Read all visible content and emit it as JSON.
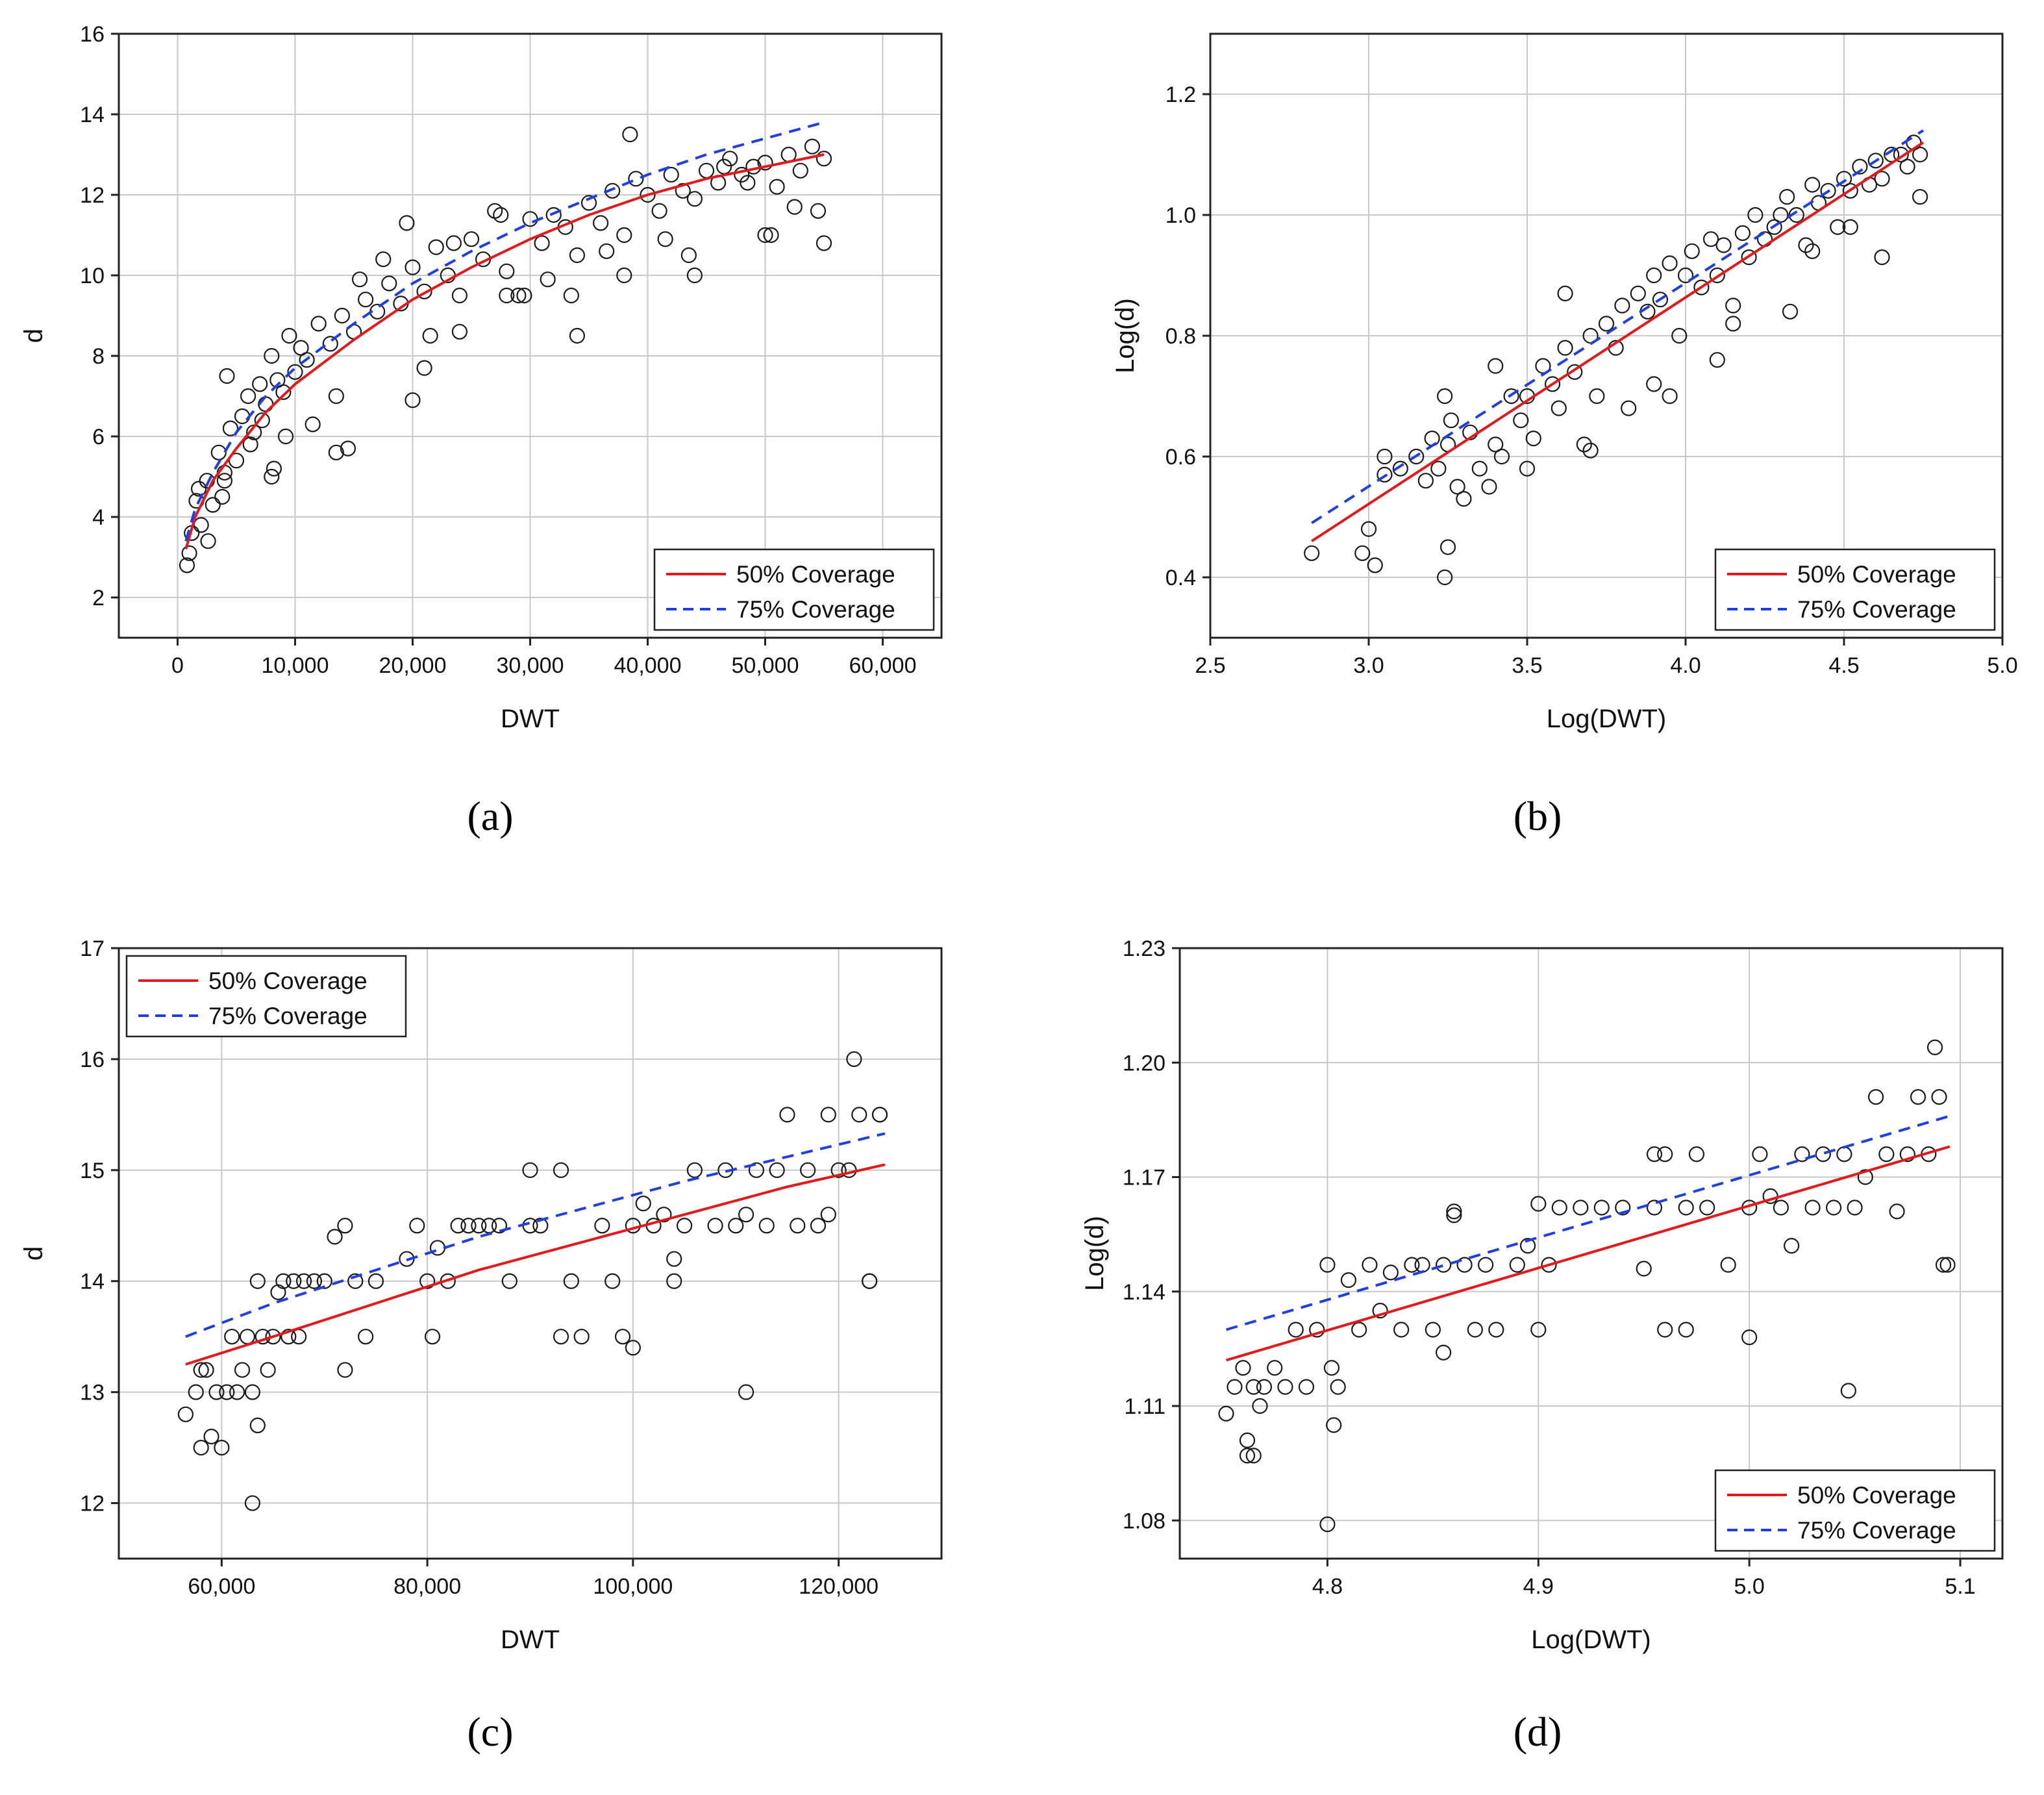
{
  "figure": {
    "panel_labels": [
      "(a)",
      "(b)",
      "(c)",
      "(d)"
    ],
    "colors": {
      "fit_50": "#e31a1c",
      "fit_75": "#1f3fe0",
      "marker_edge": "#1a1a1a",
      "grid": "#c8c8c8",
      "frame": "#222222"
    }
  },
  "chart_data": [
    {
      "id": "a",
      "type": "scatter",
      "xlabel": "DWT",
      "ylabel": "d",
      "xlim": [
        -5000,
        65000
      ],
      "ylim": [
        1,
        16
      ],
      "xticks": [
        0,
        10000,
        20000,
        30000,
        40000,
        50000,
        60000
      ],
      "xtick_labels": [
        "0",
        "10,000",
        "20,000",
        "30,000",
        "40,000",
        "50,000",
        "60,000"
      ],
      "yticks": [
        2,
        4,
        6,
        8,
        10,
        12,
        14,
        16
      ],
      "ytick_labels": [
        "2",
        "4",
        "6",
        "8",
        "10",
        "12",
        "14",
        "16"
      ],
      "legend_position": "bottom-right",
      "series": [
        {
          "name": "50% Coverage",
          "style": "solid",
          "color": "#e31a1c",
          "x": [
            700,
            1500,
            3000,
            5000,
            7500,
            10000,
            15000,
            20000,
            25000,
            30000,
            35000,
            40000,
            45000,
            50000,
            55000
          ],
          "y": [
            3.2,
            4.0,
            4.9,
            5.7,
            6.6,
            7.3,
            8.4,
            9.4,
            10.2,
            10.9,
            11.5,
            12.0,
            12.4,
            12.7,
            13.0
          ]
        },
        {
          "name": "75% Coverage",
          "style": "dashed",
          "color": "#1f3fe0",
          "x": [
            700,
            1500,
            3000,
            5000,
            7500,
            10000,
            15000,
            20000,
            25000,
            30000,
            35000,
            40000,
            45000,
            50000,
            55000
          ],
          "y": [
            3.4,
            4.2,
            5.1,
            6.1,
            7.0,
            7.7,
            8.8,
            9.8,
            10.6,
            11.3,
            11.9,
            12.5,
            13.0,
            13.4,
            13.8
          ]
        }
      ],
      "points": {
        "x": [
          800,
          1200,
          1600,
          2000,
          2500,
          3000,
          3500,
          4000,
          4500,
          5000,
          5500,
          6000,
          6500,
          7000,
          7500,
          8000,
          8500,
          9000,
          9500,
          10000,
          10500,
          11000,
          12000,
          13000,
          14000,
          15000,
          16000,
          17000,
          18000,
          19000,
          20000,
          21000,
          22000,
          23000,
          24000,
          25000,
          26000,
          27000,
          28000,
          29000,
          30000,
          31000,
          32000,
          33000,
          34000,
          35000,
          36000,
          37000,
          38000,
          39000,
          40000,
          41000,
          42000,
          43000,
          44000,
          45000,
          46000,
          47000,
          48000,
          49000,
          50000,
          51000,
          52000,
          53000,
          54000,
          55000,
          1000,
          1800,
          2600,
          3800,
          4200,
          6200,
          7200,
          8200,
          9200,
          11500,
          13500,
          14500,
          15500,
          17500,
          19500,
          21500,
          23500,
          27500,
          29500,
          31500,
          33500,
          36500,
          38500,
          41500,
          43500,
          46500,
          48500,
          50500,
          52500,
          54500,
          4000,
          8000,
          13500,
          20000,
          21000,
          24000,
          28000,
          34000,
          38000,
          44000,
          50000,
          55000
        ],
        "y": [
          2.8,
          3.6,
          4.4,
          3.8,
          4.9,
          4.3,
          5.6,
          5.1,
          6.2,
          5.4,
          6.5,
          7.0,
          6.1,
          7.3,
          6.8,
          8.0,
          7.4,
          7.1,
          8.5,
          7.6,
          8.2,
          7.9,
          8.8,
          8.3,
          9.0,
          8.6,
          9.4,
          9.1,
          9.8,
          9.3,
          10.2,
          9.6,
          10.7,
          10.0,
          9.5,
          10.9,
          10.4,
          11.6,
          10.1,
          9.5,
          11.4,
          10.8,
          11.5,
          11.2,
          10.5,
          11.8,
          11.3,
          12.1,
          11.0,
          12.4,
          12.0,
          11.6,
          12.5,
          12.1,
          11.9,
          12.6,
          12.3,
          12.9,
          12.5,
          12.7,
          12.8,
          12.2,
          13.0,
          12.6,
          13.2,
          12.9,
          3.1,
          4.7,
          3.4,
          4.5,
          7.5,
          5.8,
          6.4,
          5.2,
          6.0,
          6.3,
          7.0,
          5.7,
          9.9,
          10.4,
          11.3,
          8.5,
          10.8,
          11.5,
          9.5,
          9.9,
          9.5,
          10.6,
          13.5,
          10.9,
          10.5,
          12.7,
          12.3,
          11.0,
          11.7,
          11.6,
          4.9,
          5.0,
          5.6,
          6.9,
          7.7,
          8.6,
          9.5,
          8.5,
          10.0,
          10.0,
          11.0,
          10.8
        ]
      }
    },
    {
      "id": "b",
      "type": "scatter",
      "xlabel": "Log(DWT)",
      "ylabel": "Log(d)",
      "xlim": [
        2.5,
        5.0
      ],
      "ylim": [
        0.3,
        1.3
      ],
      "xticks": [
        2.5,
        3.0,
        3.5,
        4.0,
        4.5,
        5.0
      ],
      "xtick_labels": [
        "2.5",
        "3.0",
        "3.5",
        "4.0",
        "4.5",
        "5.0"
      ],
      "yticks": [
        0.4,
        0.6,
        0.8,
        1.0,
        1.2
      ],
      "ytick_labels": [
        "0.4",
        "0.6",
        "0.8",
        "1.0",
        "1.2"
      ],
      "legend_position": "bottom-right",
      "series": [
        {
          "name": "50% Coverage",
          "style": "solid",
          "color": "#e31a1c",
          "x": [
            2.82,
            4.75
          ],
          "y": [
            0.46,
            1.12
          ]
        },
        {
          "name": "75% Coverage",
          "style": "dashed",
          "color": "#1f3fe0",
          "x": [
            2.82,
            4.75
          ],
          "y": [
            0.49,
            1.14
          ]
        }
      ],
      "points": {
        "x": [
          2.82,
          2.98,
          3.0,
          3.02,
          3.05,
          3.05,
          3.1,
          3.15,
          3.18,
          3.2,
          3.22,
          3.24,
          3.25,
          3.26,
          3.28,
          3.3,
          3.32,
          3.35,
          3.38,
          3.4,
          3.42,
          3.45,
          3.48,
          3.5,
          3.52,
          3.55,
          3.58,
          3.6,
          3.62,
          3.65,
          3.68,
          3.7,
          3.72,
          3.75,
          3.78,
          3.8,
          3.82,
          3.85,
          3.88,
          3.9,
          3.92,
          3.95,
          3.98,
          4.0,
          4.02,
          4.05,
          4.08,
          4.1,
          4.12,
          4.15,
          4.18,
          4.2,
          4.22,
          4.25,
          4.28,
          4.3,
          4.32,
          4.35,
          4.38,
          4.4,
          4.42,
          4.45,
          4.48,
          4.5,
          4.52,
          4.55,
          4.58,
          4.6,
          4.62,
          4.65,
          4.68,
          4.7,
          4.72,
          4.74,
          3.24,
          3.25,
          3.4,
          3.62,
          3.5,
          3.7,
          3.9,
          3.95,
          4.1,
          4.15,
          4.33,
          4.4,
          4.52,
          4.62,
          4.74
        ],
        "y": [
          0.44,
          0.44,
          0.48,
          0.42,
          0.6,
          0.57,
          0.58,
          0.6,
          0.56,
          0.63,
          0.58,
          0.7,
          0.62,
          0.66,
          0.55,
          0.53,
          0.64,
          0.58,
          0.55,
          0.62,
          0.6,
          0.7,
          0.66,
          0.7,
          0.63,
          0.75,
          0.72,
          0.68,
          0.78,
          0.74,
          0.62,
          0.8,
          0.7,
          0.82,
          0.78,
          0.85,
          0.68,
          0.87,
          0.84,
          0.9,
          0.86,
          0.92,
          0.8,
          0.9,
          0.94,
          0.88,
          0.96,
          0.9,
          0.95,
          0.85,
          0.97,
          0.93,
          1.0,
          0.96,
          0.98,
          1.0,
          1.03,
          1.0,
          0.95,
          1.05,
          1.02,
          1.04,
          0.98,
          1.06,
          1.04,
          1.08,
          1.05,
          1.09,
          1.06,
          1.1,
          1.1,
          1.08,
          1.12,
          1.1,
          0.4,
          0.45,
          0.75,
          0.87,
          0.58,
          0.61,
          0.72,
          0.7,
          0.76,
          0.82,
          0.84,
          0.94,
          0.98,
          0.93,
          1.03
        ]
      }
    },
    {
      "id": "c",
      "type": "scatter",
      "xlabel": "DWT",
      "ylabel": "d",
      "xlim": [
        50000,
        130000
      ],
      "ylim": [
        11.5,
        17
      ],
      "xticks": [
        60000,
        80000,
        100000,
        120000
      ],
      "xtick_labels": [
        "60,000",
        "80,000",
        "100,000",
        "120,000"
      ],
      "yticks": [
        12,
        13,
        14,
        15,
        16,
        17
      ],
      "ytick_labels": [
        "12",
        "13",
        "14",
        "15",
        "16",
        "17"
      ],
      "legend_position": "top-left",
      "series": [
        {
          "name": "50% Coverage",
          "style": "solid",
          "color": "#e31a1c",
          "x": [
            56500,
            65000,
            75000,
            85000,
            95000,
            105000,
            115000,
            124500
          ],
          "y": [
            13.25,
            13.5,
            13.8,
            14.1,
            14.35,
            14.6,
            14.85,
            15.05
          ]
        },
        {
          "name": "75% Coverage",
          "style": "dashed",
          "color": "#1f3fe0",
          "x": [
            56500,
            65000,
            75000,
            85000,
            95000,
            105000,
            115000,
            124500
          ],
          "y": [
            13.5,
            13.8,
            14.1,
            14.4,
            14.65,
            14.9,
            15.12,
            15.33
          ]
        }
      ],
      "points": {
        "x": [
          56500,
          57500,
          58000,
          58500,
          59000,
          59500,
          60000,
          60500,
          61000,
          61500,
          62000,
          62500,
          63000,
          63500,
          64000,
          64500,
          65000,
          65500,
          66000,
          66500,
          67000,
          67500,
          68000,
          69000,
          70000,
          71000,
          72000,
          73000,
          74000,
          75000,
          78000,
          79000,
          80000,
          80500,
          81000,
          82000,
          83000,
          84000,
          85000,
          86000,
          87000,
          88000,
          90000,
          91000,
          93000,
          94000,
          95000,
          97000,
          98000,
          99000,
          100000,
          101000,
          102000,
          103000,
          104000,
          105000,
          106000,
          108000,
          109000,
          110000,
          111000,
          112000,
          113000,
          114000,
          115000,
          116000,
          117000,
          118000,
          119000,
          120000,
          121000,
          122000,
          123000,
          124000,
          63000,
          63500,
          90000,
          93000,
          100000,
          111000,
          121500,
          119000,
          123000,
          124000,
          58000,
          72000,
          104000
        ],
        "y": [
          12.8,
          13.0,
          12.5,
          13.2,
          12.6,
          13.0,
          12.5,
          13.0,
          13.5,
          13.0,
          13.2,
          13.5,
          13.0,
          14.0,
          13.5,
          13.2,
          13.5,
          13.9,
          14.0,
          13.5,
          14.0,
          13.5,
          14.0,
          14.0,
          14.0,
          14.4,
          14.5,
          14.0,
          13.5,
          14.0,
          14.2,
          14.5,
          14.0,
          13.5,
          14.3,
          14.0,
          14.5,
          14.5,
          14.5,
          14.5,
          14.5,
          14.0,
          14.5,
          14.5,
          13.5,
          14.0,
          13.5,
          14.5,
          14.0,
          13.5,
          14.5,
          14.7,
          14.5,
          14.6,
          14.2,
          14.5,
          15.0,
          14.5,
          15.0,
          14.5,
          14.6,
          15.0,
          14.5,
          15.0,
          15.5,
          14.5,
          15.0,
          14.5,
          15.5,
          15.0,
          15.0,
          15.5,
          14.0,
          15.5,
          12.0,
          12.7,
          15.0,
          15.0,
          13.4,
          13.0,
          16.0,
          14.6,
          14.0,
          15.5,
          13.2,
          13.2,
          14.0
        ]
      }
    },
    {
      "id": "d",
      "type": "scatter",
      "xlabel": "Log(DWT)",
      "ylabel": "Log(d)",
      "xlim": [
        4.73,
        5.12
      ],
      "ylim": [
        1.07,
        1.23
      ],
      "xticks": [
        4.8,
        4.9,
        5.0,
        5.1
      ],
      "xtick_labels": [
        "4.8",
        "4.9",
        "5.0",
        "5.1"
      ],
      "yticks": [
        1.08,
        1.11,
        1.14,
        1.17,
        1.2,
        1.23
      ],
      "ytick_labels": [
        "1.08",
        "1.11",
        "1.14",
        "1.17",
        "1.20",
        "1.23"
      ],
      "legend_position": "bottom-right",
      "series": [
        {
          "name": "50% Coverage",
          "style": "solid",
          "color": "#e31a1c",
          "x": [
            4.752,
            5.095
          ],
          "y": [
            1.122,
            1.178
          ]
        },
        {
          "name": "75% Coverage",
          "style": "dashed",
          "color": "#1f3fe0",
          "x": [
            4.752,
            5.095
          ],
          "y": [
            1.13,
            1.186
          ]
        }
      ],
      "points": {
        "x": [
          4.752,
          4.756,
          4.76,
          4.762,
          4.765,
          4.768,
          4.77,
          4.775,
          4.78,
          4.785,
          4.79,
          4.795,
          4.8,
          4.802,
          4.805,
          4.81,
          4.815,
          4.82,
          4.825,
          4.83,
          4.835,
          4.84,
          4.845,
          4.85,
          4.855,
          4.86,
          4.865,
          4.87,
          4.875,
          4.88,
          4.89,
          4.895,
          4.9,
          4.905,
          4.91,
          4.92,
          4.93,
          4.94,
          4.95,
          4.955,
          4.96,
          4.97,
          4.975,
          4.98,
          4.99,
          5.0,
          5.005,
          5.01,
          5.015,
          5.02,
          5.025,
          5.03,
          5.035,
          5.04,
          5.045,
          5.05,
          5.055,
          5.06,
          5.065,
          5.07,
          5.075,
          5.08,
          5.085,
          5.09,
          5.094,
          4.8,
          4.803,
          4.762,
          4.765,
          4.855,
          4.955,
          4.96,
          4.97,
          5.0,
          5.047,
          5.088,
          5.092,
          4.86,
          4.9
        ],
        "y": [
          1.108,
          1.115,
          1.12,
          1.097,
          1.115,
          1.11,
          1.115,
          1.12,
          1.115,
          1.13,
          1.115,
          1.13,
          1.147,
          1.12,
          1.115,
          1.143,
          1.13,
          1.147,
          1.135,
          1.145,
          1.13,
          1.147,
          1.147,
          1.13,
          1.147,
          1.161,
          1.147,
          1.13,
          1.147,
          1.13,
          1.147,
          1.152,
          1.163,
          1.147,
          1.162,
          1.162,
          1.162,
          1.162,
          1.146,
          1.162,
          1.176,
          1.162,
          1.176,
          1.162,
          1.147,
          1.162,
          1.176,
          1.165,
          1.162,
          1.152,
          1.176,
          1.162,
          1.176,
          1.162,
          1.176,
          1.162,
          1.17,
          1.191,
          1.176,
          1.161,
          1.176,
          1.191,
          1.176,
          1.191,
          1.147,
          1.079,
          1.105,
          1.101,
          1.097,
          1.124,
          1.176,
          1.13,
          1.13,
          1.128,
          1.114,
          1.204,
          1.147,
          1.16,
          1.13
        ]
      }
    }
  ]
}
